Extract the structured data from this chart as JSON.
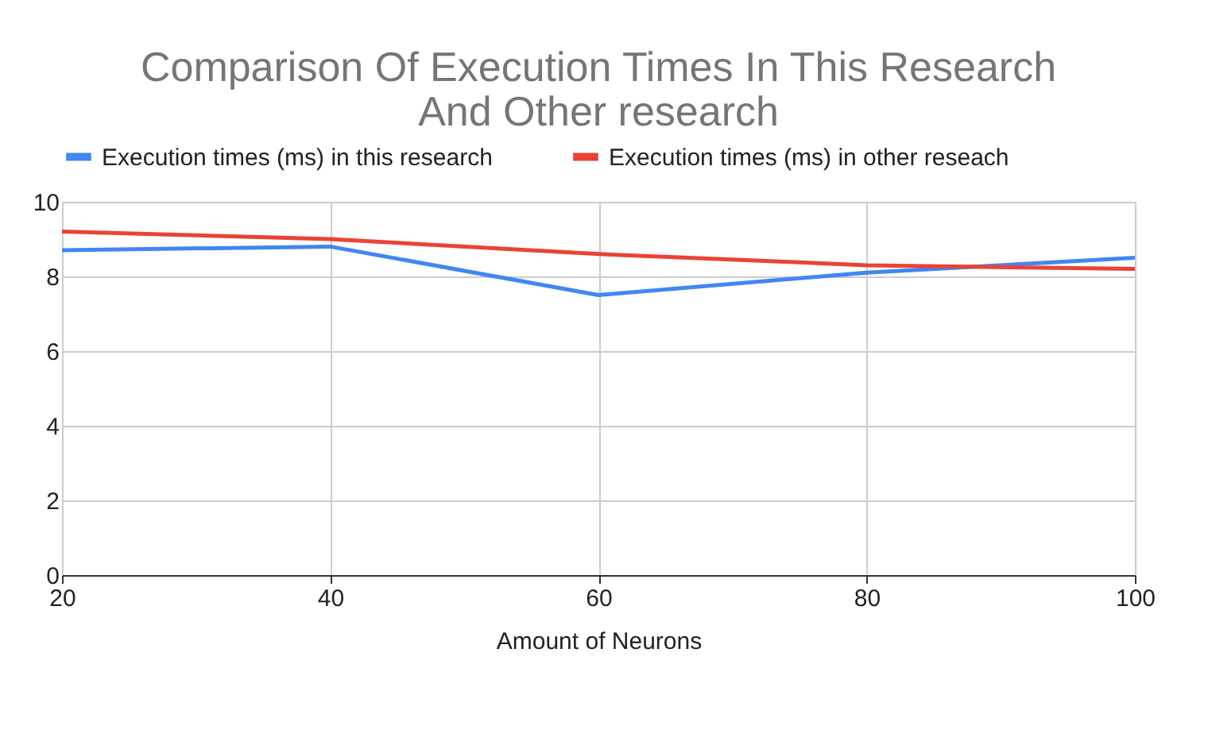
{
  "chart_data": {
    "type": "line",
    "title": [
      "Comparison Of Execution Times In This Research",
      "And Other research"
    ],
    "xlabel": "Amount of Neurons",
    "x": [
      20,
      40,
      60,
      80,
      100
    ],
    "series": [
      {
        "name": "Execution times (ms) in this research",
        "color": "#4285f4",
        "values": [
          8.7,
          8.8,
          7.5,
          8.1,
          8.5
        ]
      },
      {
        "name": "Execution times (ms) in other reseach",
        "color": "#ea4335",
        "values": [
          9.2,
          9.0,
          8.6,
          8.3,
          8.2
        ]
      }
    ],
    "xlim": [
      20,
      100
    ],
    "xticks": [
      20,
      40,
      60,
      80,
      100
    ],
    "ylim": [
      0,
      10
    ],
    "yticks": [
      0,
      2,
      4,
      6,
      8,
      10
    ],
    "grid": true,
    "legend": "top",
    "line_style": "solid",
    "marker": "none"
  }
}
